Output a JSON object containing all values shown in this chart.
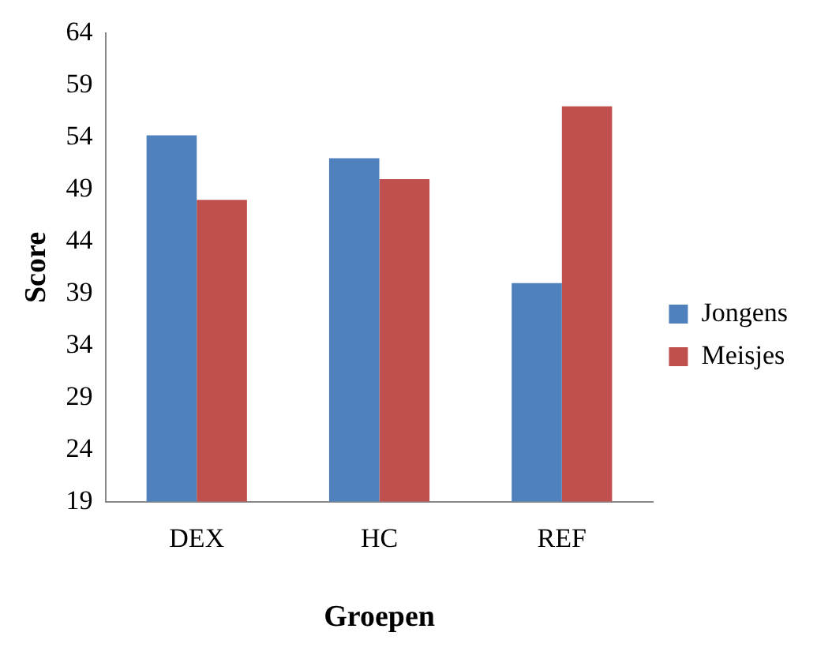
{
  "chart_data": {
    "type": "bar",
    "xlabel": "Groepen",
    "ylabel": "Score",
    "categories": [
      "DEX",
      "HC",
      "REF"
    ],
    "series": [
      {
        "name": "Jongens",
        "color": "#4f81bd",
        "values": [
          54.2,
          52,
          40
        ]
      },
      {
        "name": "Meisjes",
        "color": "#c0504d",
        "values": [
          48,
          50,
          57
        ]
      }
    ],
    "ylim": [
      19,
      64
    ],
    "yticks": [
      19,
      24,
      29,
      34,
      39,
      44,
      49,
      54,
      59,
      64
    ],
    "grid": false,
    "legend": "right"
  }
}
